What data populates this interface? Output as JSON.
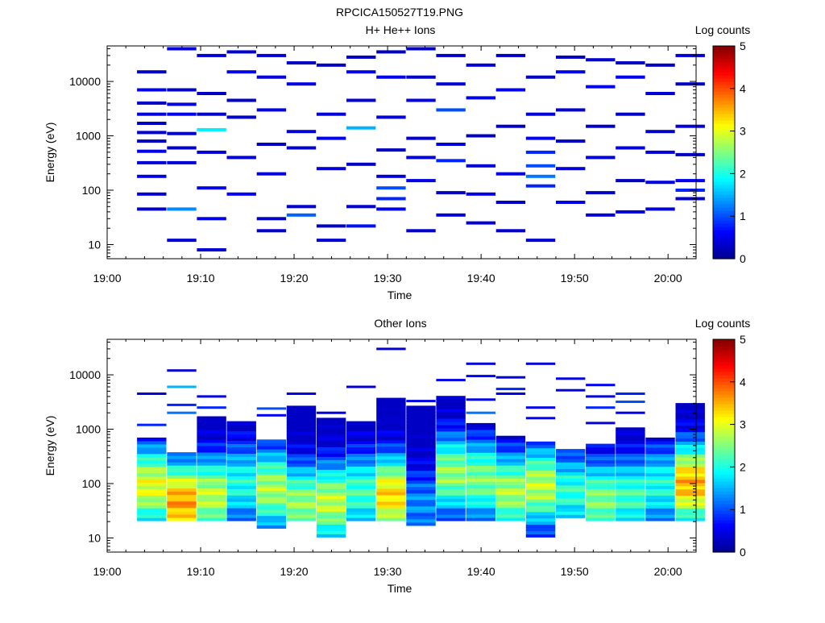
{
  "file_title": "RPCICA150527T19.PNG",
  "colors": {
    "background": "#ffffff",
    "axes": "#000000",
    "colormap": [
      "#00008f",
      "#0000ff",
      "#0080ff",
      "#00ffff",
      "#80ff80",
      "#ffff00",
      "#ff8000",
      "#ff0000",
      "#800000"
    ]
  },
  "chart_data": [
    {
      "type": "heatmap",
      "title": "H+ He++ Ions",
      "xlabel": "Time",
      "ylabel": "Energy (eV)",
      "x_ticks": [
        "19:00",
        "19:10",
        "19:20",
        "19:30",
        "19:40",
        "19:50",
        "20:00"
      ],
      "xlim_minutes": [
        0,
        63
      ],
      "ylim": [
        5.5,
        45000
      ],
      "y_scale": "log",
      "y_ticks": [
        {
          "value": 10,
          "label": "10"
        },
        {
          "value": 100,
          "label": "100"
        },
        {
          "value": 1000,
          "label": "1000"
        },
        {
          "value": 10000,
          "label": "10000"
        }
      ],
      "colorbar": {
        "label": "Log counts",
        "range": [
          0,
          5
        ],
        "ticks": [
          "0",
          "1",
          "2",
          "3",
          "4",
          "5"
        ]
      },
      "columns_minutes": [
        3.2,
        6.4,
        9.6,
        12.8,
        16.0,
        19.2,
        22.4,
        25.6,
        28.8,
        32.0,
        35.2,
        38.4,
        41.6,
        44.8,
        48.0,
        51.2,
        54.4,
        57.6,
        60.8
      ],
      "cells": [
        [
          3.2,
          4000,
          0.3
        ],
        [
          3.2,
          2500,
          0.4
        ],
        [
          3.2,
          1700,
          0.3
        ],
        [
          3.2,
          1150,
          0.4
        ],
        [
          3.2,
          800,
          0.3
        ],
        [
          3.2,
          520,
          0.5
        ],
        [
          3.2,
          320,
          0.4
        ],
        [
          3.2,
          180,
          0.5
        ],
        [
          3.2,
          85,
          0.4
        ],
        [
          3.2,
          45,
          0.3
        ],
        [
          3.2,
          15000,
          0.3
        ],
        [
          3.2,
          7000,
          0.5
        ],
        [
          6.4,
          45,
          1.3
        ],
        [
          6.4,
          12,
          0.4
        ],
        [
          6.4,
          7000,
          0.3
        ],
        [
          6.4,
          2500,
          0.5
        ],
        [
          6.4,
          600,
          0.3
        ],
        [
          6.4,
          320,
          0.4
        ],
        [
          6.4,
          1100,
          0.3
        ],
        [
          6.4,
          3800,
          0.4
        ],
        [
          6.4,
          40000,
          0.6
        ],
        [
          9.6,
          1300,
          1.8
        ],
        [
          9.6,
          8,
          0.4
        ],
        [
          9.6,
          30,
          0.5
        ],
        [
          9.6,
          500,
          0.4
        ],
        [
          9.6,
          2500,
          0.3
        ],
        [
          9.6,
          30000,
          0.4
        ],
        [
          9.6,
          110,
          0.5
        ],
        [
          9.6,
          6000,
          0.3
        ],
        [
          12.8,
          85,
          0.6
        ],
        [
          12.8,
          400,
          0.4
        ],
        [
          12.8,
          2200,
          0.3
        ],
        [
          12.8,
          15000,
          0.5
        ],
        [
          12.8,
          35000,
          0.4
        ],
        [
          12.8,
          4500,
          0.3
        ],
        [
          16.0,
          18,
          0.4
        ],
        [
          16.0,
          30,
          0.3
        ],
        [
          16.0,
          200,
          0.4
        ],
        [
          16.0,
          700,
          0.3
        ],
        [
          16.0,
          3000,
          0.5
        ],
        [
          16.0,
          12000,
          0.4
        ],
        [
          16.0,
          30000,
          0.4
        ],
        [
          19.2,
          35,
          1.1
        ],
        [
          19.2,
          50,
          0.4
        ],
        [
          19.2,
          600,
          0.3
        ],
        [
          19.2,
          1200,
          0.4
        ],
        [
          19.2,
          9000,
          0.5
        ],
        [
          19.2,
          22000,
          0.3
        ],
        [
          22.4,
          12,
          0.4
        ],
        [
          22.4,
          22,
          0.3
        ],
        [
          22.4,
          250,
          0.4
        ],
        [
          22.4,
          900,
          0.5
        ],
        [
          22.4,
          2500,
          0.4
        ],
        [
          22.4,
          20000,
          0.3
        ],
        [
          25.6,
          22,
          0.7
        ],
        [
          25.6,
          50,
          0.4
        ],
        [
          25.6,
          300,
          0.3
        ],
        [
          25.6,
          1400,
          1.5
        ],
        [
          25.6,
          4500,
          0.4
        ],
        [
          25.6,
          15000,
          0.5
        ],
        [
          25.6,
          28000,
          0.3
        ],
        [
          28.8,
          45,
          0.5
        ],
        [
          28.8,
          70,
          0.8
        ],
        [
          28.8,
          110,
          1.0
        ],
        [
          28.8,
          180,
          0.4
        ],
        [
          28.8,
          550,
          0.3
        ],
        [
          28.8,
          2200,
          0.4
        ],
        [
          28.8,
          12000,
          0.5
        ],
        [
          28.8,
          35000,
          0.3
        ],
        [
          32.0,
          18,
          0.4
        ],
        [
          32.0,
          150,
          0.5
        ],
        [
          32.0,
          400,
          0.4
        ],
        [
          32.0,
          900,
          0.3
        ],
        [
          32.0,
          4500,
          0.5
        ],
        [
          32.0,
          12000,
          0.3
        ],
        [
          32.0,
          40000,
          0.4
        ],
        [
          35.2,
          35,
          0.4
        ],
        [
          35.2,
          90,
          0.3
        ],
        [
          35.2,
          350,
          0.8
        ],
        [
          35.2,
          700,
          0.4
        ],
        [
          35.2,
          3000,
          1.0
        ],
        [
          35.2,
          9000,
          0.4
        ],
        [
          35.2,
          30000,
          0.3
        ],
        [
          38.4,
          25,
          0.4
        ],
        [
          38.4,
          85,
          0.5
        ],
        [
          38.4,
          280,
          0.4
        ],
        [
          38.4,
          1000,
          0.3
        ],
        [
          38.4,
          5000,
          0.5
        ],
        [
          38.4,
          20000,
          0.4
        ],
        [
          41.6,
          18,
          0.4
        ],
        [
          41.6,
          60,
          0.3
        ],
        [
          41.6,
          200,
          0.4
        ],
        [
          41.6,
          1500,
          0.3
        ],
        [
          41.6,
          7000,
          0.5
        ],
        [
          41.6,
          30000,
          0.3
        ],
        [
          44.8,
          12,
          0.4
        ],
        [
          44.8,
          120,
          0.8
        ],
        [
          44.8,
          180,
          1.2
        ],
        [
          44.8,
          280,
          1.0
        ],
        [
          44.8,
          500,
          0.8
        ],
        [
          44.8,
          900,
          0.5
        ],
        [
          44.8,
          2500,
          0.4
        ],
        [
          44.8,
          12000,
          0.3
        ],
        [
          48.0,
          60,
          0.5
        ],
        [
          48.0,
          250,
          0.4
        ],
        [
          48.0,
          800,
          0.3
        ],
        [
          48.0,
          3000,
          0.4
        ],
        [
          48.0,
          15000,
          0.5
        ],
        [
          48.0,
          28000,
          0.3
        ],
        [
          51.2,
          35,
          0.4
        ],
        [
          51.2,
          90,
          0.3
        ],
        [
          51.2,
          400,
          0.4
        ],
        [
          51.2,
          1500,
          0.3
        ],
        [
          51.2,
          8000,
          0.5
        ],
        [
          51.2,
          25000,
          0.4
        ],
        [
          54.4,
          40,
          0.4
        ],
        [
          54.4,
          150,
          0.3
        ],
        [
          54.4,
          600,
          0.4
        ],
        [
          54.4,
          2500,
          0.3
        ],
        [
          54.4,
          12000,
          0.5
        ],
        [
          54.4,
          22000,
          0.3
        ],
        [
          57.6,
          45,
          0.4
        ],
        [
          57.6,
          140,
          0.5
        ],
        [
          57.6,
          500,
          0.4
        ],
        [
          57.6,
          1200,
          0.3
        ],
        [
          57.6,
          6000,
          0.4
        ],
        [
          57.6,
          20000,
          0.3
        ],
        [
          60.8,
          100,
          0.8
        ],
        [
          60.8,
          150,
          0.6
        ],
        [
          60.8,
          70,
          0.4
        ],
        [
          60.8,
          450,
          0.3
        ],
        [
          60.8,
          1500,
          0.4
        ],
        [
          60.8,
          9000,
          0.3
        ],
        [
          60.8,
          30000,
          0.4
        ]
      ]
    },
    {
      "type": "heatmap",
      "title": "Other Ions",
      "xlabel": "Time",
      "ylabel": "Energy (eV)",
      "x_ticks": [
        "19:00",
        "19:10",
        "19:20",
        "19:30",
        "19:40",
        "19:50",
        "20:00"
      ],
      "xlim_minutes": [
        0,
        63
      ],
      "ylim": [
        5.5,
        45000
      ],
      "y_scale": "log",
      "y_ticks": [
        {
          "value": 10,
          "label": "10"
        },
        {
          "value": 100,
          "label": "100"
        },
        {
          "value": 1000,
          "label": "1000"
        },
        {
          "value": 10000,
          "label": "10000"
        }
      ],
      "colorbar": {
        "label": "Log counts",
        "range": [
          0,
          5
        ],
        "ticks": [
          "0",
          "1",
          "2",
          "3",
          "4",
          "5"
        ]
      },
      "columns_minutes": [
        3.2,
        6.4,
        9.6,
        12.8,
        16.0,
        19.2,
        22.4,
        25.6,
        28.8,
        32.0,
        35.2,
        38.4,
        41.6,
        44.8,
        48.0,
        51.2,
        54.4,
        57.6,
        60.8
      ],
      "profiles": [
        {
          "t": 3.2,
          "min": 22,
          "max": 650,
          "peak": 90,
          "peak_value": 3.0,
          "extra": [
            [
              4500,
              0.4
            ],
            [
              1200,
              0.8
            ]
          ]
        },
        {
          "t": 6.4,
          "min": 22,
          "max": 350,
          "peak": 45,
          "peak_value": 3.6,
          "extra": [
            [
              12000,
              0.4
            ],
            [
              6000,
              1.5
            ],
            [
              2800,
              0.8
            ],
            [
              2000,
              1.2
            ]
          ]
        },
        {
          "t": 9.6,
          "min": 22,
          "max": 1600,
          "peak": 60,
          "peak_value": 2.8,
          "extra": [
            [
              4000,
              0.5
            ],
            [
              2500,
              0.8
            ]
          ]
        },
        {
          "t": 12.8,
          "min": 22,
          "max": 1300,
          "peak": 100,
          "peak_value": 2.0,
          "extra": []
        },
        {
          "t": 16.0,
          "min": 16,
          "max": 600,
          "peak": 80,
          "peak_value": 2.7,
          "extra": [
            [
              2400,
              1.0
            ],
            [
              1800,
              0.6
            ]
          ]
        },
        {
          "t": 19.2,
          "min": 22,
          "max": 2500,
          "peak": 45,
          "peak_value": 2.6,
          "extra": [
            [
              4500,
              0.5
            ]
          ]
        },
        {
          "t": 22.4,
          "min": 11,
          "max": 1500,
          "peak": 45,
          "peak_value": 2.8,
          "extra": [
            [
              2000,
              0.4
            ]
          ]
        },
        {
          "t": 25.6,
          "min": 22,
          "max": 1300,
          "peak": 70,
          "peak_value": 2.2,
          "extra": [
            [
              6000,
              0.4
            ]
          ]
        },
        {
          "t": 28.8,
          "min": 22,
          "max": 3500,
          "peak": 60,
          "peak_value": 3.3,
          "extra": [
            [
              30000,
              0.4
            ]
          ]
        },
        {
          "t": 32.0,
          "min": 18,
          "max": 2500,
          "peak": 40,
          "peak_value": 1.3,
          "extra": [
            [
              3300,
              0.5
            ]
          ]
        },
        {
          "t": 35.2,
          "min": 22,
          "max": 3800,
          "peak": 150,
          "peak_value": 2.6,
          "extra": [
            [
              8000,
              0.5
            ]
          ]
        },
        {
          "t": 38.4,
          "min": 22,
          "max": 1200,
          "peak": 120,
          "peak_value": 2.5,
          "extra": [
            [
              16000,
              0.4
            ],
            [
              9500,
              0.6
            ],
            [
              3500,
              0.5
            ],
            [
              2000,
              1.2
            ]
          ]
        },
        {
          "t": 41.6,
          "min": 22,
          "max": 700,
          "peak": 70,
          "peak_value": 2.7,
          "extra": [
            [
              9000,
              0.4
            ],
            [
              5500,
              0.8
            ],
            [
              4500,
              0.5
            ]
          ]
        },
        {
          "t": 44.8,
          "min": 11,
          "max": 550,
          "peak": 90,
          "peak_value": 2.8,
          "extra": [
            [
              16000,
              0.4
            ],
            [
              2500,
              0.5
            ],
            [
              1600,
              0.6
            ]
          ]
        },
        {
          "t": 48.0,
          "min": 25,
          "max": 400,
          "peak": 70,
          "peak_value": 2.1,
          "extra": [
            [
              8500,
              0.5
            ],
            [
              5200,
              0.4
            ]
          ]
        },
        {
          "t": 51.2,
          "min": 22,
          "max": 500,
          "peak": 50,
          "peak_value": 2.5,
          "extra": [
            [
              6500,
              0.6
            ],
            [
              4000,
              0.4
            ],
            [
              2500,
              0.8
            ],
            [
              1300,
              0.4
            ]
          ]
        },
        {
          "t": 54.4,
          "min": 22,
          "max": 1000,
          "peak": 60,
          "peak_value": 2.2,
          "extra": [
            [
              4500,
              0.8
            ],
            [
              3200,
              1.0
            ],
            [
              2000,
              0.5
            ]
          ]
        },
        {
          "t": 57.6,
          "min": 22,
          "max": 650,
          "peak": 90,
          "peak_value": 2.0,
          "extra": []
        },
        {
          "t": 60.8,
          "min": 22,
          "max": 2800,
          "peak": 100,
          "peak_value": 3.5,
          "extra": []
        }
      ]
    }
  ]
}
